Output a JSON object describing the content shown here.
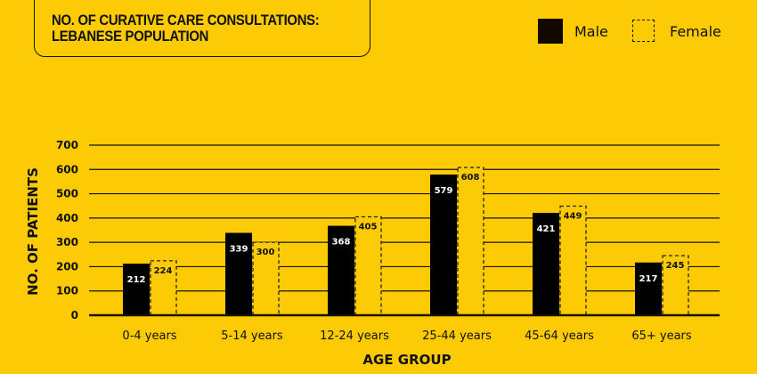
{
  "chart_data": {
    "type": "bar",
    "title": "NO. OF CURATIVE CARE CONSULTATIONS: LEBANESE POPULATION",
    "title_lines": [
      "NO. OF CURATIVE CARE CONSULTATIONS:",
      "LEBANESE POPULATION"
    ],
    "xlabel": "AGE GROUP",
    "ylabel": "NO. OF PATIENTS",
    "categories": [
      "0-4 years",
      "5-14 years",
      "12-24 years",
      "25-44 years",
      "45-64 years",
      "65+ years"
    ],
    "series": [
      {
        "name": "Male",
        "values": [
          212,
          339,
          368,
          579,
          421,
          217
        ],
        "color": "#000000"
      },
      {
        "name": "Female",
        "values": [
          224,
          300,
          405,
          608,
          449,
          245
        ],
        "style": "dashed-outline"
      }
    ],
    "ylim": [
      0,
      700
    ],
    "yticks": [
      0,
      100,
      200,
      300,
      400,
      500,
      600,
      700
    ],
    "grid": true,
    "legend": "top-right",
    "background": "#FDCB06"
  }
}
